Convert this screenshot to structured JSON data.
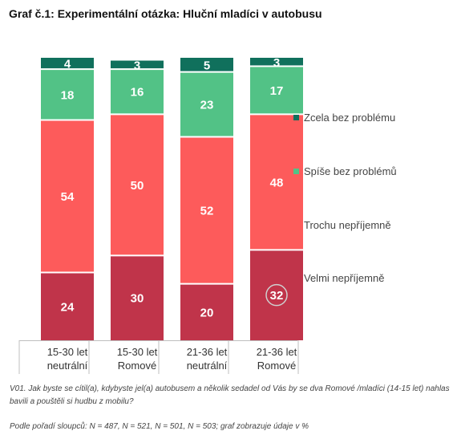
{
  "title": "Graf č.1: Experimentální otázka: Hluční mladíci v autobusu",
  "question": "V01. Jak byste se cítil(a), kdybyste jel(a) autobusem a několik sedadel od Vás by se dva Romové /mladíci (14-15 let) nahlas bavili a pouštěli si hudbu z mobilu?",
  "note": "Podle pořadí sloupců: N = 487, N = 521, N = 501, N = 503; graf zobrazuje údaje v %",
  "chart_data": {
    "type": "bar",
    "stacked": true,
    "categories": [
      [
        "15-30 let",
        "neutrální"
      ],
      [
        "15-30 let",
        "Romové"
      ],
      [
        "21-36 let",
        "neutrální"
      ],
      [
        "21-36 let",
        "Romové"
      ]
    ],
    "series": [
      {
        "name": "Velmi nepříjemně",
        "values": [
          24,
          30,
          20,
          32
        ],
        "color": "#c0344a"
      },
      {
        "name": "Trochu nepříjemně",
        "values": [
          54,
          50,
          52,
          48
        ],
        "color": "#fd5b5b"
      },
      {
        "name": "Spíše bez problémů",
        "values": [
          18,
          16,
          23,
          17
        ],
        "color": "#52c286"
      },
      {
        "name": "Zcela bez problému",
        "values": [
          4,
          3,
          5,
          3
        ],
        "color": "#10705c"
      }
    ],
    "legend_position": "right",
    "grid": false,
    "ylim": [
      0,
      100
    ],
    "highlighted_value": {
      "category_index": 3,
      "series": "Velmi nepříjemně"
    }
  }
}
